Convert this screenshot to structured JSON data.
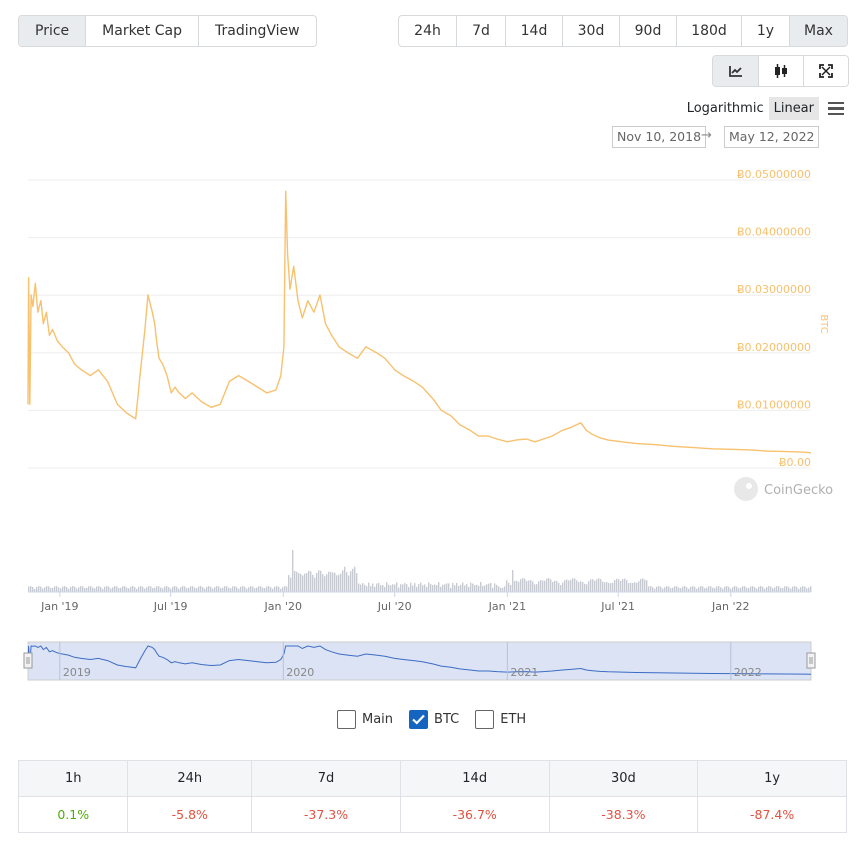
{
  "view_tabs": {
    "items": [
      "Price",
      "Market Cap",
      "TradingView"
    ],
    "active": 0
  },
  "range_tabs": {
    "items": [
      "24h",
      "7d",
      "14d",
      "30d",
      "90d",
      "180d",
      "1y",
      "Max"
    ],
    "active": 7
  },
  "chart_type_tabs": [
    {
      "icon": "line-chart-icon",
      "active": true
    },
    {
      "icon": "candlestick-icon",
      "active": false
    },
    {
      "icon": "fullscreen-icon",
      "active": false
    }
  ],
  "scale": {
    "log_label": "Logarithmic",
    "linear_label": "Linear",
    "active": "Linear"
  },
  "date_range": {
    "from": "Nov 10, 2018",
    "arrow": "→",
    "to": "May 12, 2022"
  },
  "watermark": "CoinGecko",
  "series_toggles": [
    {
      "label": "Main",
      "checked": false
    },
    {
      "label": "BTC",
      "checked": true
    },
    {
      "label": "ETH",
      "checked": false
    }
  ],
  "colors": {
    "price_line": "#f7c16e",
    "volume": "#c7cad1",
    "navigator_line": "#3d6cc4",
    "navigator_fill": "#dbe3f5",
    "positive": "#4eaf0a",
    "negative": "#e15241"
  },
  "change_table": {
    "headers": [
      "1h",
      "24h",
      "7d",
      "14d",
      "30d",
      "1y"
    ],
    "values": [
      "0.1%",
      "-5.8%",
      "-37.3%",
      "-36.7%",
      "-38.3%",
      "-87.4%"
    ],
    "signs": [
      "positive",
      "negative",
      "negative",
      "negative",
      "negative",
      "negative"
    ]
  },
  "chart_data": {
    "type": "line",
    "ylabel": "BTC",
    "ylim": [
      0,
      0.05
    ],
    "y_ticks": [
      "Ƀ0.00",
      "Ƀ0.01000000",
      "Ƀ0.02000000",
      "Ƀ0.03000000",
      "Ƀ0.04000000",
      "Ƀ0.05000000"
    ],
    "x_ticks": [
      "Jan '19",
      "Jul '19",
      "Jan '20",
      "Jul '20",
      "Jan '21",
      "Jul '21",
      "Jan '22"
    ],
    "navigator_ticks": [
      "2019",
      "2020",
      "2021",
      "2022"
    ],
    "xlim": [
      "2018-11-10",
      "2022-05-12"
    ],
    "grid": true,
    "series": [
      {
        "x": [
          "2018-11-10",
          "2018-11-11",
          "2018-11-13",
          "2018-11-15",
          "2018-11-18",
          "2018-11-22",
          "2018-11-26",
          "2018-12-01",
          "2018-12-05",
          "2018-12-10",
          "2018-12-15",
          "2018-12-20",
          "2018-12-28",
          "2019-01-05",
          "2019-01-15",
          "2019-01-25",
          "2019-02-05",
          "2019-02-20",
          "2019-03-05",
          "2019-03-20",
          "2019-04-05",
          "2019-04-20",
          "2019-05-05",
          "2019-05-12",
          "2019-05-20",
          "2019-05-25",
          "2019-06-01",
          "2019-06-05",
          "2019-06-08",
          "2019-06-12",
          "2019-06-18",
          "2019-06-25",
          "2019-07-02",
          "2019-07-08",
          "2019-07-15",
          "2019-07-25",
          "2019-08-05",
          "2019-08-20",
          "2019-09-05",
          "2019-09-20",
          "2019-10-05",
          "2019-10-20",
          "2019-11-05",
          "2019-11-20",
          "2019-12-05",
          "2019-12-20",
          "2019-12-28",
          "2020-01-02",
          "2020-01-05",
          "2020-01-08",
          "2020-01-12",
          "2020-01-18",
          "2020-01-25",
          "2020-02-01",
          "2020-02-10",
          "2020-02-20",
          "2020-03-01",
          "2020-03-10",
          "2020-03-20",
          "2020-04-01",
          "2020-04-15",
          "2020-05-01",
          "2020-05-15",
          "2020-06-01",
          "2020-06-15",
          "2020-07-01",
          "2020-07-15",
          "2020-08-01",
          "2020-08-15",
          "2020-09-01",
          "2020-09-15",
          "2020-10-01",
          "2020-10-15",
          "2020-11-01",
          "2020-11-15",
          "2020-12-01",
          "2020-12-15",
          "2021-01-01",
          "2021-01-15",
          "2021-02-01",
          "2021-02-15",
          "2021-03-01",
          "2021-03-15",
          "2021-04-01",
          "2021-04-15",
          "2021-05-01",
          "2021-05-10",
          "2021-05-20",
          "2021-06-01",
          "2021-06-15",
          "2021-07-01",
          "2021-07-15",
          "2021-08-01",
          "2021-09-01",
          "2021-10-01",
          "2021-11-01",
          "2021-12-01",
          "2022-01-01",
          "2022-02-01",
          "2022-03-01",
          "2022-04-01",
          "2022-05-01",
          "2022-05-12"
        ],
        "y": [
          0.01,
          0.032,
          0.01,
          0.029,
          0.027,
          0.031,
          0.026,
          0.028,
          0.024,
          0.026,
          0.022,
          0.023,
          0.021,
          0.02,
          0.019,
          0.017,
          0.016,
          0.015,
          0.016,
          0.014,
          0.01,
          0.0085,
          0.0075,
          0.015,
          0.023,
          0.029,
          0.026,
          0.024,
          0.021,
          0.018,
          0.017,
          0.015,
          0.012,
          0.013,
          0.012,
          0.011,
          0.012,
          0.0105,
          0.0095,
          0.01,
          0.014,
          0.015,
          0.014,
          0.013,
          0.012,
          0.0125,
          0.015,
          0.02,
          0.047,
          0.036,
          0.03,
          0.034,
          0.028,
          0.025,
          0.028,
          0.026,
          0.029,
          0.024,
          0.022,
          0.02,
          0.019,
          0.018,
          0.02,
          0.019,
          0.018,
          0.016,
          0.015,
          0.014,
          0.013,
          0.011,
          0.009,
          0.008,
          0.0065,
          0.0055,
          0.0045,
          0.0045,
          0.004,
          0.0035,
          0.0038,
          0.004,
          0.0035,
          0.004,
          0.0045,
          0.0055,
          0.006,
          0.0068,
          0.0055,
          0.0048,
          0.0042,
          0.0038,
          0.0036,
          0.0034,
          0.0032,
          0.003,
          0.0027,
          0.0025,
          0.0023,
          0.0022,
          0.0021,
          0.0019,
          0.0018,
          0.0017,
          0.0016
        ]
      }
    ]
  }
}
